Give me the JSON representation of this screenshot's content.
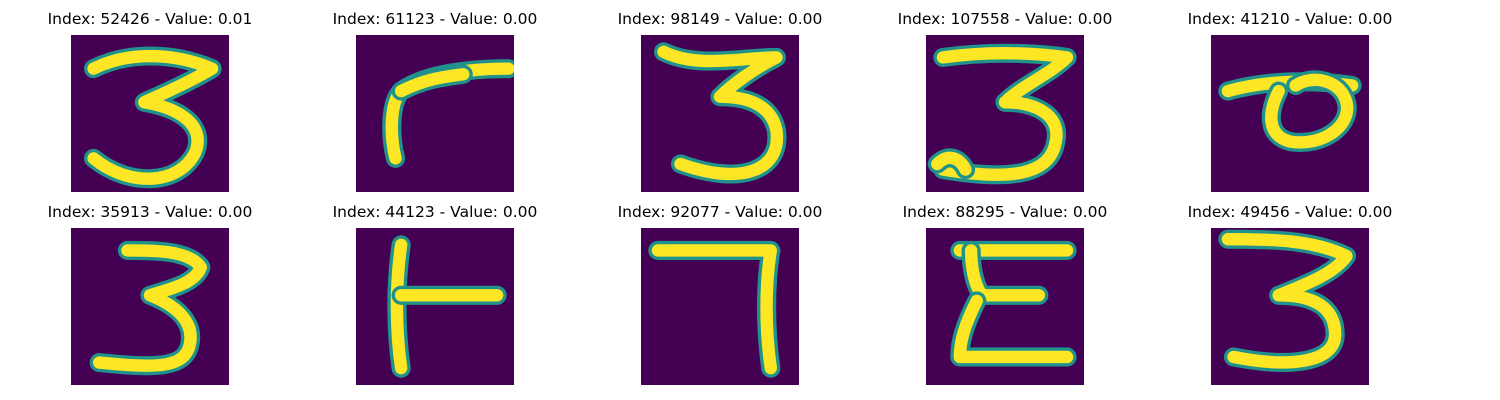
{
  "colors": {
    "background": "#440154",
    "ink": "#fde725",
    "ink_edge": "#21918c"
  },
  "panels": [
    {
      "title": "Index: 52426 - Value: 0.01",
      "glyph": "three-a"
    },
    {
      "title": "Index: 61123 - Value: 0.00",
      "glyph": "hook"
    },
    {
      "title": "Index: 98149 - Value: 0.00",
      "glyph": "three-b"
    },
    {
      "title": "Index: 107558 - Value: 0.00",
      "glyph": "three-c"
    },
    {
      "title": "Index: 41210 - Value: 0.00",
      "glyph": "loop"
    },
    {
      "title": "Index: 35913 - Value: 0.00",
      "glyph": "three-d"
    },
    {
      "title": "Index: 44123 - Value: 0.00",
      "glyph": "t-rotated"
    },
    {
      "title": "Index: 92077 - Value: 0.00",
      "glyph": "seven"
    },
    {
      "title": "Index: 88295 - Value: 0.00",
      "glyph": "epsilon"
    },
    {
      "title": "Index: 49456 - Value: 0.00",
      "glyph": "three-e"
    }
  ]
}
